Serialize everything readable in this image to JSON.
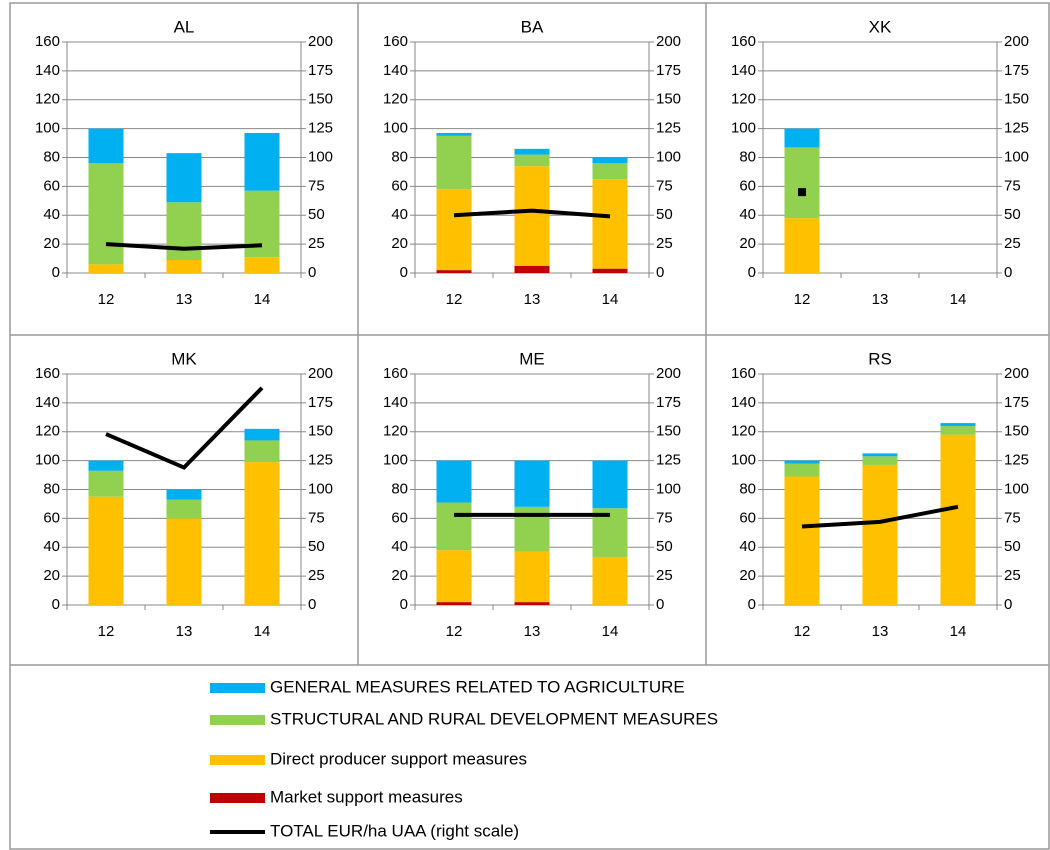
{
  "chart_data": [
    {
      "type": "bar",
      "title": "AL",
      "categories": [
        "12",
        "13",
        "14"
      ],
      "series": [
        {
          "name": "Market support measures",
          "color": "#c00000",
          "values": [
            0,
            0,
            0
          ]
        },
        {
          "name": "Direct producer support measures",
          "color": "#ffc000",
          "values": [
            6,
            9,
            11
          ]
        },
        {
          "name": "STRUCTURAL AND RURAL DEVELOPMENT MEASURES",
          "color": "#92d050",
          "values": [
            70,
            40,
            46
          ]
        },
        {
          "name": "GENERAL MEASURES RELATED TO AGRICULTURE",
          "color": "#00b0f0",
          "values": [
            24,
            34,
            40
          ]
        },
        {
          "name": "TOTAL EUR/ha UAA (right scale)",
          "color": "#000000",
          "axis": "y2",
          "values": [
            25,
            21,
            24
          ]
        }
      ],
      "ylim": [
        0,
        160
      ],
      "yticks": [
        0,
        20,
        40,
        60,
        80,
        100,
        120,
        140,
        160
      ],
      "y2lim": [
        0,
        200
      ],
      "y2ticks": [
        0,
        25,
        50,
        75,
        100,
        125,
        150,
        175,
        200
      ]
    },
    {
      "type": "bar",
      "title": "BA",
      "categories": [
        "12",
        "13",
        "14"
      ],
      "series": [
        {
          "name": "Market support measures",
          "color": "#c00000",
          "values": [
            2,
            5,
            3
          ]
        },
        {
          "name": "Direct producer support measures",
          "color": "#ffc000",
          "values": [
            56,
            69,
            62
          ]
        },
        {
          "name": "STRUCTURAL AND RURAL DEVELOPMENT MEASURES",
          "color": "#92d050",
          "values": [
            37,
            8,
            11
          ]
        },
        {
          "name": "GENERAL MEASURES RELATED TO AGRICULTURE",
          "color": "#00b0f0",
          "values": [
            2,
            4,
            4
          ]
        },
        {
          "name": "TOTAL EUR/ha UAA (right scale)",
          "color": "#000000",
          "axis": "y2",
          "values": [
            50,
            54,
            49
          ]
        }
      ],
      "ylim": [
        0,
        160
      ],
      "yticks": [
        0,
        20,
        40,
        60,
        80,
        100,
        120,
        140,
        160
      ],
      "y2lim": [
        0,
        200
      ],
      "y2ticks": [
        0,
        25,
        50,
        75,
        100,
        125,
        150,
        175,
        200
      ]
    },
    {
      "type": "bar",
      "title": "XK",
      "categories": [
        "12",
        "13",
        "14"
      ],
      "series": [
        {
          "name": "Market support measures",
          "color": "#c00000",
          "values": [
            0,
            null,
            null
          ]
        },
        {
          "name": "Direct producer support measures",
          "color": "#ffc000",
          "values": [
            38,
            null,
            null
          ]
        },
        {
          "name": "STRUCTURAL AND RURAL DEVELOPMENT MEASURES",
          "color": "#92d050",
          "values": [
            49,
            null,
            null
          ]
        },
        {
          "name": "GENERAL MEASURES RELATED TO AGRICULTURE",
          "color": "#00b0f0",
          "values": [
            13,
            null,
            null
          ]
        },
        {
          "name": "TOTAL EUR/ha UAA (right scale)",
          "color": "#000000",
          "axis": "y2",
          "values": [
            70,
            null,
            null
          ]
        }
      ],
      "ylim": [
        0,
        160
      ],
      "yticks": [
        0,
        20,
        40,
        60,
        80,
        100,
        120,
        140,
        160
      ],
      "y2lim": [
        0,
        200
      ],
      "y2ticks": [
        0,
        25,
        50,
        75,
        100,
        125,
        150,
        175,
        200
      ]
    },
    {
      "type": "bar",
      "title": "MK",
      "categories": [
        "12",
        "13",
        "14"
      ],
      "series": [
        {
          "name": "Market support measures",
          "color": "#c00000",
          "values": [
            0,
            0,
            0
          ]
        },
        {
          "name": "Direct producer support measures",
          "color": "#ffc000",
          "values": [
            75,
            60,
            99
          ]
        },
        {
          "name": "STRUCTURAL AND RURAL DEVELOPMENT MEASURES",
          "color": "#92d050",
          "values": [
            18,
            13,
            15
          ]
        },
        {
          "name": "GENERAL MEASURES RELATED TO AGRICULTURE",
          "color": "#00b0f0",
          "values": [
            7,
            7,
            8
          ]
        },
        {
          "name": "TOTAL EUR/ha UAA (right scale)",
          "color": "#000000",
          "axis": "y2",
          "values": [
            148,
            119,
            188
          ]
        }
      ],
      "ylim": [
        0,
        160
      ],
      "yticks": [
        0,
        20,
        40,
        60,
        80,
        100,
        120,
        140,
        160
      ],
      "y2lim": [
        0,
        200
      ],
      "y2ticks": [
        0,
        25,
        50,
        75,
        100,
        125,
        150,
        175,
        200
      ]
    },
    {
      "type": "bar",
      "title": "ME",
      "categories": [
        "12",
        "13",
        "14"
      ],
      "series": [
        {
          "name": "Market support measures",
          "color": "#c00000",
          "values": [
            2,
            2,
            0
          ]
        },
        {
          "name": "Direct producer support measures",
          "color": "#ffc000",
          "values": [
            36,
            35,
            33
          ]
        },
        {
          "name": "STRUCTURAL AND RURAL DEVELOPMENT MEASURES",
          "color": "#92d050",
          "values": [
            33,
            31,
            34
          ]
        },
        {
          "name": "GENERAL MEASURES RELATED TO AGRICULTURE",
          "color": "#00b0f0",
          "values": [
            29,
            32,
            33
          ]
        },
        {
          "name": "TOTAL EUR/ha UAA (right scale)",
          "color": "#000000",
          "axis": "y2",
          "values": [
            78,
            78,
            78
          ]
        }
      ],
      "ylim": [
        0,
        160
      ],
      "yticks": [
        0,
        20,
        40,
        60,
        80,
        100,
        120,
        140,
        160
      ],
      "y2lim": [
        0,
        200
      ],
      "y2ticks": [
        0,
        25,
        50,
        75,
        100,
        125,
        150,
        175,
        200
      ]
    },
    {
      "type": "bar",
      "title": "RS",
      "categories": [
        "12",
        "13",
        "14"
      ],
      "series": [
        {
          "name": "Market support measures",
          "color": "#c00000",
          "values": [
            0,
            0,
            0
          ]
        },
        {
          "name": "Direct producer support measures",
          "color": "#ffc000",
          "values": [
            89,
            97,
            118
          ]
        },
        {
          "name": "STRUCTURAL AND RURAL DEVELOPMENT MEASURES",
          "color": "#92d050",
          "values": [
            9,
            6,
            6
          ]
        },
        {
          "name": "GENERAL MEASURES RELATED TO AGRICULTURE",
          "color": "#00b0f0",
          "values": [
            2,
            2,
            2
          ]
        },
        {
          "name": "TOTAL EUR/ha UAA (right scale)",
          "color": "#000000",
          "axis": "y2",
          "values": [
            68,
            72,
            85
          ]
        }
      ],
      "ylim": [
        0,
        160
      ],
      "yticks": [
        0,
        20,
        40,
        60,
        80,
        100,
        120,
        140,
        160
      ],
      "y2lim": [
        0,
        200
      ],
      "y2ticks": [
        0,
        25,
        50,
        75,
        100,
        125,
        150,
        175,
        200
      ]
    }
  ]
}
